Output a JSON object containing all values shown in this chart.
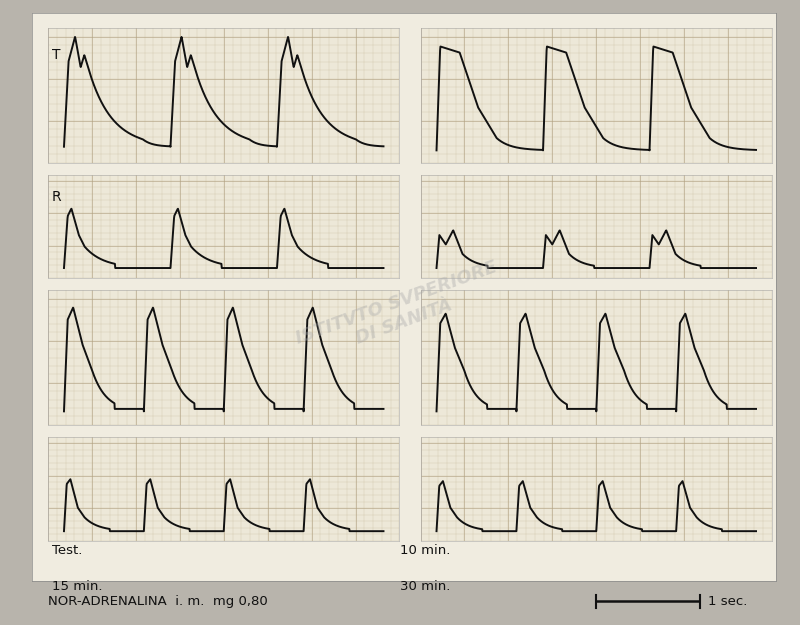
{
  "bottom_label": "NOR-ADRENALINA  i. m.  mg 0,80",
  "scale_label": "1 sec.",
  "outer_bg": "#b8b4ac",
  "frame_bg": "#f0ece0",
  "paper_bg": "#ede8d8",
  "grid_color_minor": "#c8b89a",
  "grid_color_major": "#b0a080",
  "line_color": "#111111",
  "font_color": "#111111",
  "label_T": "T",
  "label_R": "R",
  "label_test": "Test.",
  "label_10": "10 min.",
  "label_15": "15 min.",
  "label_30": "30 min."
}
